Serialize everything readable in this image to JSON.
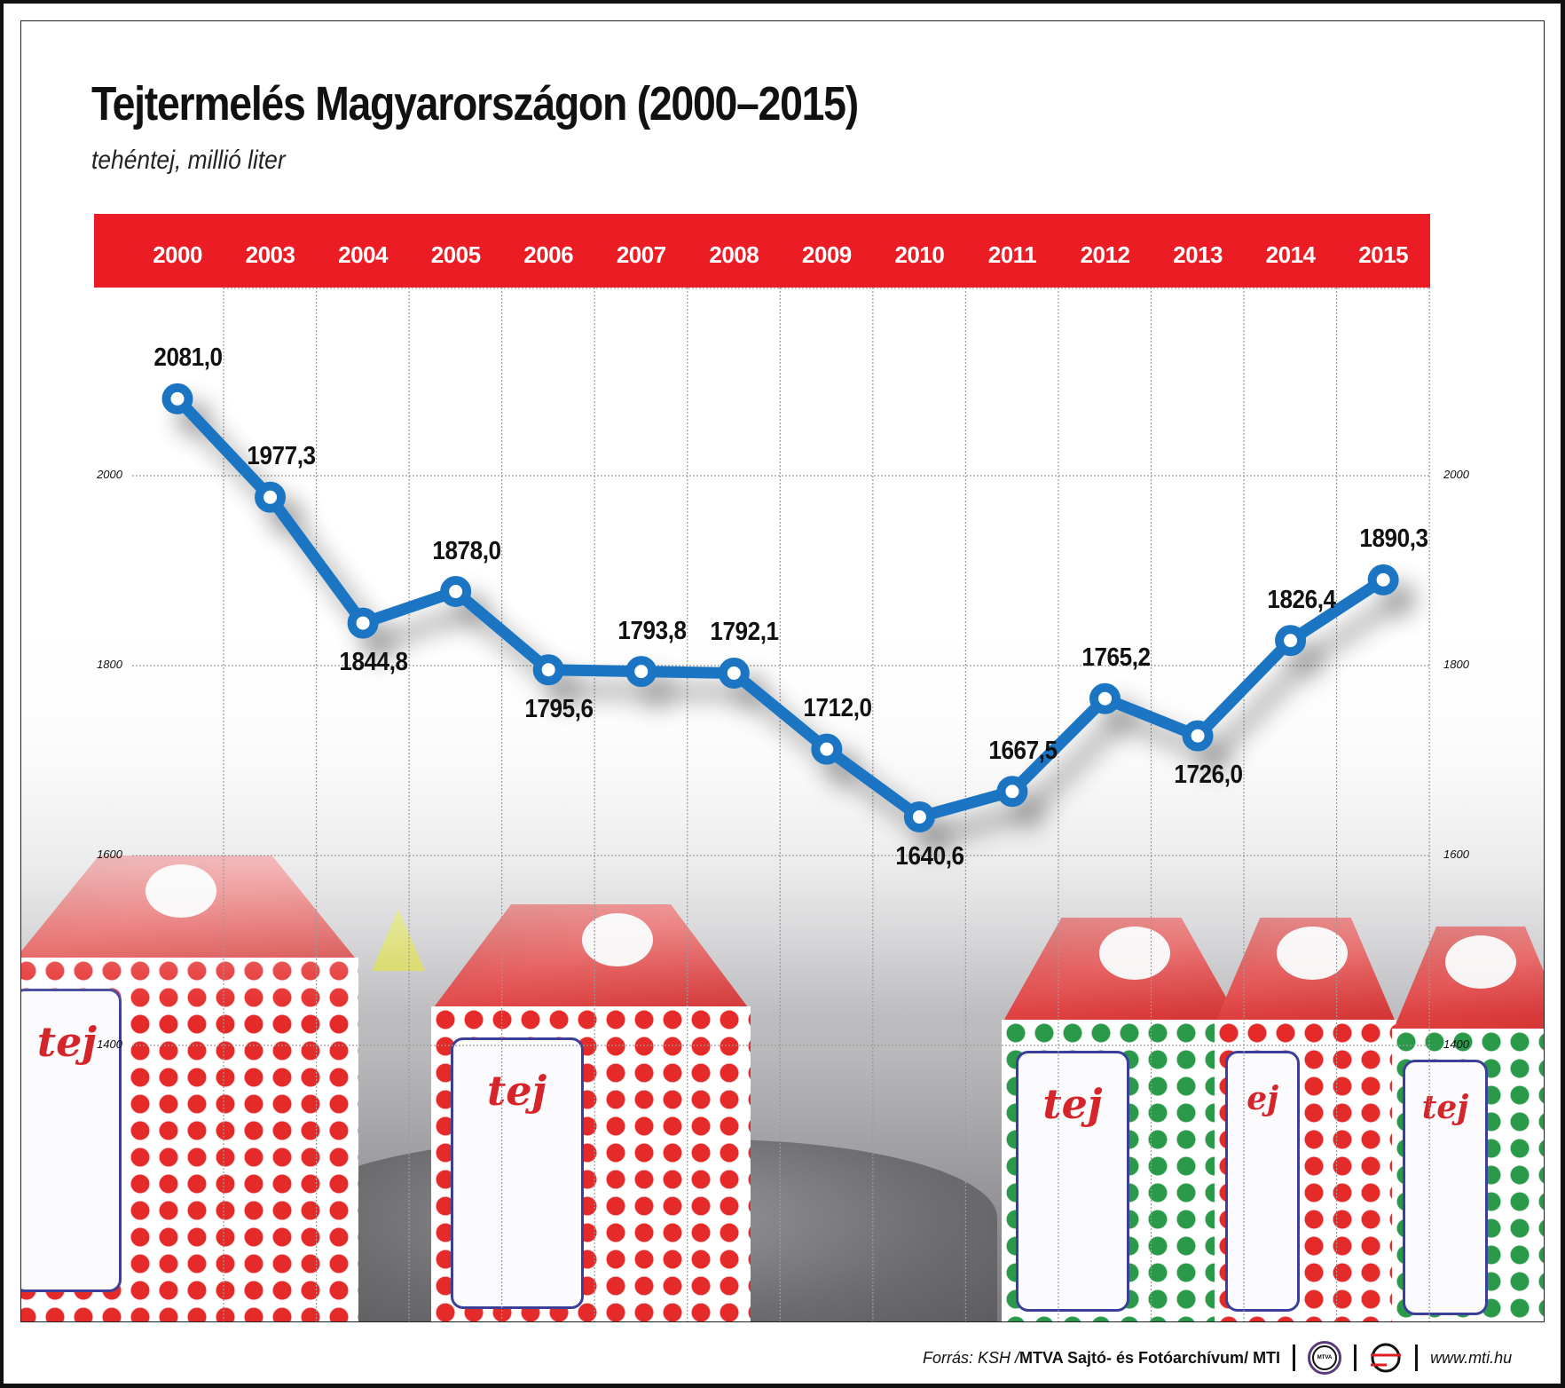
{
  "header": {
    "title": "Tejtermelés Magyarországon (2000–2015)",
    "subtitle": "tehéntej, millió liter"
  },
  "colors": {
    "accent_red": "#ec1c24",
    "line_blue": "#1a74c2",
    "text": "#111111"
  },
  "years": [
    "2000",
    "2003",
    "2004",
    "2005",
    "2006",
    "2007",
    "2008",
    "2009",
    "2010",
    "2011",
    "2012",
    "2013",
    "2014",
    "2015"
  ],
  "values_text": [
    "2081,0",
    "1977,3",
    "1844,8",
    "1878,0",
    "1795,6",
    "1793,8",
    "1792,1",
    "1712,0",
    "1640,6",
    "1667,5",
    "1765,2",
    "1726,0",
    "1826,4",
    "1890,3"
  ],
  "y_ticks": [
    "2000",
    "1800",
    "1600",
    "1400"
  ],
  "footer": {
    "source_prefix": "Forrás: KSH / ",
    "source_bold": "MTVA Sajtó- és Fotóarchívum",
    "source_suffix": " / MTI",
    "mtva_logo_text": "MTVA",
    "url": "www.mti.hu"
  },
  "chart_data": {
    "type": "line",
    "title": "Tejtermelés Magyarországon (2000–2015)",
    "subtitle": "tehéntej, millió liter",
    "xlabel": "",
    "ylabel": "millió liter",
    "x": [
      2000,
      2003,
      2004,
      2005,
      2006,
      2007,
      2008,
      2009,
      2010,
      2011,
      2012,
      2013,
      2014,
      2015
    ],
    "series": [
      {
        "name": "tehéntej",
        "values": [
          2081.0,
          1977.3,
          1844.8,
          1878.0,
          1795.6,
          1793.8,
          1792.1,
          1712.0,
          1640.6,
          1667.5,
          1765.2,
          1726.0,
          1826.4,
          1890.3
        ]
      }
    ],
    "y_ticks": [
      1400,
      1600,
      1800,
      2000
    ],
    "ylim": [
      1330,
      2140
    ],
    "grid": true,
    "legend": "none",
    "data_labels": true,
    "source": "Forrás: KSH / MTVA Sajtó- és Fotóarchívum / MTI"
  }
}
